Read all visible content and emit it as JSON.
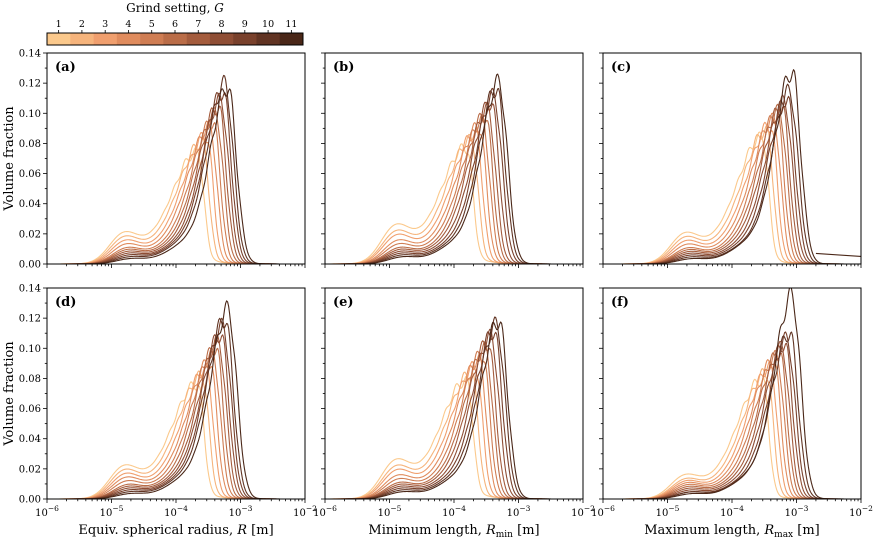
{
  "figure": {
    "colorbar": {
      "title_text": "Grind setting, ",
      "title_var": "G",
      "ticks": [
        "1",
        "2",
        "3",
        "4",
        "5",
        "6",
        "7",
        "8",
        "9",
        "10",
        "11"
      ],
      "colors": [
        "#fbc98c",
        "#f6b47c",
        "#f09f6e",
        "#e08c5e",
        "#cf7d53",
        "#ba6d48",
        "#a45c3d",
        "#8f4e35",
        "#79412c",
        "#613423",
        "#4a2718"
      ]
    },
    "y_axis_label": "Volume fraction",
    "x_tick_labels": {
      "e-6": {
        "base": "10",
        "exp": "−6"
      },
      "e-5": {
        "base": "10",
        "exp": "−5"
      },
      "e-4": {
        "base": "10",
        "exp": "−4"
      },
      "e-3": {
        "base": "10",
        "exp": "−3"
      },
      "e-2": {
        "base": "10",
        "exp": "−2"
      }
    },
    "y_tick_labels": [
      "0.00",
      "0.02",
      "0.04",
      "0.06",
      "0.08",
      "0.10",
      "0.12",
      "0.14"
    ],
    "column_x_labels": [
      {
        "main": "Equiv. spherical radius, ",
        "var": "R",
        "sub": "",
        "unit": " [m]"
      },
      {
        "main": "Minimum length, ",
        "var": "R",
        "sub": "min",
        "unit": " [m]"
      },
      {
        "main": "Maximum length, ",
        "var": "R",
        "sub": "max",
        "unit": " [m]"
      }
    ],
    "panel_labels": [
      "(a)",
      "(b)",
      "(c)",
      "(d)",
      "(e)",
      "(f)"
    ]
  },
  "chart_data": [
    {
      "panel": "(a)",
      "type": "line",
      "xscale": "log",
      "xlim": [
        1e-06,
        0.01
      ],
      "ylim": [
        0,
        0.14
      ],
      "xlabel": "",
      "ylabel": "Volume fraction",
      "series_descriptor": {
        "grind_settings": [
          1,
          2,
          3,
          4,
          5,
          6,
          7,
          8,
          9,
          10,
          11
        ],
        "fine_peak_radius": 1.5e-05,
        "fine_peak_heights": [
          0.017,
          0.015,
          0.013,
          0.011,
          0.009,
          0.008,
          0.007,
          0.006,
          0.005,
          0.004,
          0.003
        ],
        "main_peak_radius": [
          0.00022,
          0.00026,
          0.0003,
          0.00034,
          0.00038,
          0.00042,
          0.00046,
          0.0005,
          0.00054,
          0.00058,
          0.00064
        ],
        "main_peak_heights": [
          0.068,
          0.075,
          0.08,
          0.086,
          0.09,
          0.095,
          0.1,
          0.104,
          0.11,
          0.115,
          0.113
        ]
      }
    },
    {
      "panel": "(b)",
      "type": "line",
      "xscale": "log",
      "xlim": [
        1e-06,
        0.01
      ],
      "ylim": [
        0,
        0.14
      ],
      "xlabel": "",
      "ylabel": "",
      "series_descriptor": {
        "grind_settings": [
          1,
          2,
          3,
          4,
          5,
          6,
          7,
          8,
          9,
          10,
          11
        ],
        "fine_peak_radius": 1.2e-05,
        "fine_peak_heights": [
          0.021,
          0.018,
          0.016,
          0.013,
          0.011,
          0.009,
          0.008,
          0.007,
          0.006,
          0.005,
          0.004
        ],
        "main_peak_radius": [
          0.00016,
          0.00019,
          0.00022,
          0.00025,
          0.00028,
          0.00031,
          0.00034,
          0.00038,
          0.00042,
          0.00046,
          0.0005
        ],
        "main_peak_heights": [
          0.07,
          0.076,
          0.081,
          0.086,
          0.09,
          0.094,
          0.098,
          0.103,
          0.107,
          0.112,
          0.116
        ]
      }
    },
    {
      "panel": "(c)",
      "type": "line",
      "xscale": "log",
      "xlim": [
        1e-06,
        0.01
      ],
      "ylim": [
        0,
        0.14
      ],
      "xlabel": "",
      "ylabel": "",
      "series_descriptor": {
        "grind_settings": [
          1,
          2,
          3,
          4,
          5,
          6,
          7,
          8,
          9,
          10,
          11
        ],
        "fine_peak_radius": 1.8e-05,
        "fine_peak_heights": [
          0.017,
          0.015,
          0.013,
          0.011,
          0.009,
          0.008,
          0.007,
          0.006,
          0.005,
          0.004,
          0.003
        ],
        "main_peak_radius": [
          0.0003,
          0.00035,
          0.0004,
          0.00045,
          0.0005,
          0.00055,
          0.0006,
          0.00066,
          0.00072,
          0.00079,
          0.00086
        ],
        "main_peak_heights": [
          0.078,
          0.083,
          0.087,
          0.091,
          0.094,
          0.097,
          0.1,
          0.103,
          0.106,
          0.11,
          0.123
        ],
        "tail_line": {
          "x": [
            0.002,
            0.01
          ],
          "y": [
            0.007,
            0.005
          ]
        }
      }
    },
    {
      "panel": "(d)",
      "type": "line",
      "xscale": "log",
      "xlim": [
        1e-06,
        0.01
      ],
      "ylim": [
        0,
        0.14
      ],
      "xlabel": "Equiv. spherical radius, R [m]",
      "ylabel": "Volume fraction",
      "series_descriptor": {
        "grind_settings": [
          1,
          2,
          3,
          4,
          5,
          6,
          7,
          8,
          9,
          10,
          11
        ],
        "fine_peak_radius": 1.5e-05,
        "fine_peak_heights": [
          0.018,
          0.016,
          0.014,
          0.012,
          0.01,
          0.008,
          0.007,
          0.006,
          0.005,
          0.004,
          0.003
        ],
        "main_peak_radius": [
          0.00022,
          0.00026,
          0.0003,
          0.00034,
          0.00038,
          0.00042,
          0.00046,
          0.0005,
          0.00054,
          0.00058,
          0.00065
        ],
        "main_peak_heights": [
          0.07,
          0.076,
          0.081,
          0.086,
          0.091,
          0.096,
          0.1,
          0.105,
          0.11,
          0.115,
          0.121
        ]
      }
    },
    {
      "panel": "(e)",
      "type": "line",
      "xscale": "log",
      "xlim": [
        1e-06,
        0.01
      ],
      "ylim": [
        0,
        0.14
      ],
      "xlabel": "Minimum length, Rmin [m]",
      "ylabel": "",
      "series_descriptor": {
        "grind_settings": [
          1,
          2,
          3,
          4,
          5,
          6,
          7,
          8,
          9,
          10,
          11
        ],
        "fine_peak_radius": 1.2e-05,
        "fine_peak_heights": [
          0.021,
          0.018,
          0.016,
          0.013,
          0.011,
          0.009,
          0.008,
          0.007,
          0.006,
          0.005,
          0.004
        ],
        "main_peak_radius": [
          0.00016,
          0.00019,
          0.00022,
          0.00025,
          0.00028,
          0.00031,
          0.00034,
          0.00038,
          0.00042,
          0.00046,
          0.0005
        ],
        "main_peak_heights": [
          0.071,
          0.077,
          0.082,
          0.087,
          0.091,
          0.095,
          0.099,
          0.103,
          0.107,
          0.111,
          0.114
        ]
      }
    },
    {
      "panel": "(f)",
      "type": "line",
      "xscale": "log",
      "xlim": [
        1e-06,
        0.01
      ],
      "ylim": [
        0,
        0.14
      ],
      "xlabel": "Maximum length, Rmax [m]",
      "ylabel": "",
      "series_descriptor": {
        "grind_settings": [
          1,
          2,
          3,
          4,
          5,
          6,
          7,
          8,
          9,
          10,
          11
        ],
        "fine_peak_radius": 1.8e-05,
        "fine_peak_heights": [
          0.013,
          0.011,
          0.01,
          0.009,
          0.008,
          0.007,
          0.006,
          0.005,
          0.004,
          0.004,
          0.003
        ],
        "main_peak_radius": [
          0.0003,
          0.00035,
          0.0004,
          0.00045,
          0.0005,
          0.00055,
          0.0006,
          0.00066,
          0.00072,
          0.00079,
          0.00086
        ],
        "main_peak_heights": [
          0.074,
          0.079,
          0.083,
          0.087,
          0.09,
          0.093,
          0.096,
          0.099,
          0.102,
          0.106,
          0.13
        ]
      }
    }
  ]
}
